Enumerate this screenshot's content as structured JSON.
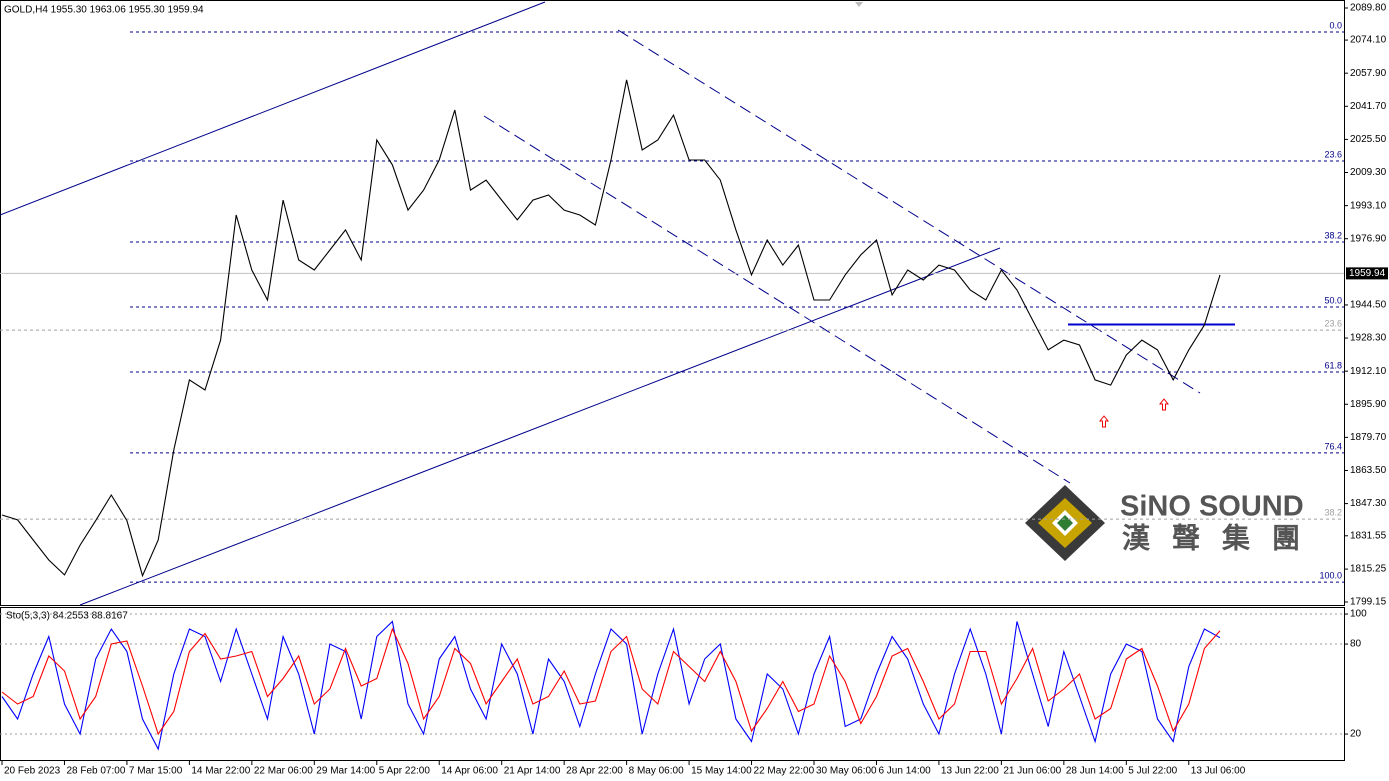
{
  "chart_data": [
    {
      "type": "line",
      "title": "GOLD,H4  1955.30 1963.06 1955.30 1959.94",
      "categories": [
        "20 Feb 2023",
        null,
        null,
        null,
        "28 Feb 07:00",
        null,
        null,
        null,
        "7 Mar 15:00",
        null,
        null,
        null,
        "14 Mar 22:00",
        null,
        null,
        null,
        "22 Mar 06:00",
        null,
        null,
        null,
        "29 Mar 14:00",
        null,
        null,
        null,
        "5 Apr 22:00",
        null,
        null,
        null,
        "14 Apr 06:00",
        null,
        null,
        null,
        "21 Apr 14:00",
        null,
        null,
        null,
        "28 Apr 22:00",
        null,
        null,
        null,
        "8 May 06:00",
        null,
        null,
        null,
        "15 May 14:00",
        null,
        null,
        null,
        "22 May 22:00",
        null,
        null,
        null,
        "30 May 06:00",
        null,
        null,
        null,
        "6 Jun 14:00",
        null,
        null,
        null,
        "13 Jun 22:00",
        null,
        null,
        null,
        "21 Jun 06:00",
        null,
        null,
        null,
        "28 Jun 14:00",
        null,
        null,
        null,
        "5 Jul 22:00",
        null,
        null,
        null,
        "13 Jul 06:00",
        null,
        null
      ],
      "series": [
        {
          "color": "#000000",
          "values": [
            1841.7,
            1839.3,
            1829.5,
            1819.7,
            1812.4,
            1827,
            1839,
            1851.5,
            1839,
            1812,
            1829.5,
            1873.5,
            1907.8,
            1902.9,
            1927.3,
            1988.5,
            1961.6,
            1946.9,
            1995.8,
            1966.5,
            1961.6,
            1971.4,
            1981.2,
            1966.5,
            2025.2,
            2013,
            1990.9,
            2000.7,
            2015.4,
            2039.9,
            2000.7,
            2005.6,
            1995.8,
            1986.1,
            1995.8,
            1998.3,
            1990.9,
            1988.5,
            1983.6,
            2015.4,
            2054.6,
            2020.3,
            2025.2,
            2037.4,
            2015.4,
            2015.4,
            2005.6,
            1981.2,
            1959.2,
            1976.3,
            1964,
            1973.8,
            1946.9,
            1946.9,
            1959.2,
            1969,
            1976.3,
            1949.4,
            1961.6,
            1956.7,
            1964,
            1961.6,
            1951.8,
            1946.9,
            1961.6,
            1951.8,
            1937.1,
            1922.5,
            1927.3,
            1924.9,
            1907.8,
            1905.3,
            1920,
            1927.3,
            1922.5,
            1907.8,
            1922.5,
            1934.7,
            1959.2
          ]
        }
      ],
      "ylim": [
        1797.68,
        2093.71
      ],
      "yticks": [
        {
          "value": 2089.8,
          "label": "2089.80"
        },
        {
          "value": 2074.1,
          "label": "2074.10"
        },
        {
          "value": 2057.9,
          "label": "2057.90"
        },
        {
          "value": 2041.7,
          "label": "2041.70"
        },
        {
          "value": 2025.5,
          "label": "2025.50"
        },
        {
          "value": 2009.3,
          "label": "2009.30"
        },
        {
          "value": 1993.1,
          "label": "1993.10"
        },
        {
          "value": 1976.9,
          "label": "1976.90"
        },
        {
          "value": 1944.5,
          "label": "1944.50"
        },
        {
          "value": 1928.3,
          "label": "1928.30"
        },
        {
          "value": 1912.1,
          "label": "1912.10"
        },
        {
          "value": 1895.9,
          "label": "1895.90"
        },
        {
          "value": 1879.7,
          "label": "1879.70"
        },
        {
          "value": 1863.5,
          "label": "1863.50"
        },
        {
          "value": 1847.3,
          "label": "1847.30"
        },
        1831.55,
        1815.25,
        {
          "value": 1799.15,
          "label": "1799.15"
        }
      ],
      "current_price": 1959.94,
      "levels": [
        {
          "label": "0.0",
          "value": 2078.05,
          "color": "#00008b"
        },
        {
          "label": "23.6",
          "value": 2014.93,
          "color": "#00008b"
        },
        {
          "label": "38.2",
          "value": 1975.3,
          "color": "#00008b"
        },
        {
          "label": "50.0",
          "value": 1943.5,
          "color": "#00008b"
        },
        {
          "label": "61.8",
          "value": 1911.7,
          "color": "#00008b"
        },
        {
          "label": "76.4",
          "value": 1872.1,
          "color": "#00008b"
        },
        {
          "label": "100.0",
          "value": 1808.9,
          "color": "#00008b"
        },
        {
          "label": "23.6",
          "value": 1932.2,
          "color": "#a0a0a0"
        },
        {
          "label": "38.2",
          "value": 1839.7,
          "color": "#a0a0a0"
        }
      ]
    },
    {
      "type": "line",
      "title": "Sto(5,3,3) 84.2553 88.8167",
      "series": [
        {
          "color": "#0000ff",
          "values": [
            45,
            30,
            60,
            85,
            40,
            20,
            70,
            90,
            75,
            30,
            10,
            60,
            90,
            85,
            55,
            90,
            60,
            30,
            85,
            60,
            20,
            80,
            75,
            30,
            85,
            95,
            40,
            20,
            70,
            85,
            50,
            30,
            80,
            60,
            20,
            70,
            55,
            25,
            60,
            90,
            80,
            20,
            60,
            90,
            40,
            70,
            80,
            30,
            15,
            60,
            50,
            20,
            60,
            85,
            25,
            30,
            60,
            85,
            70,
            40,
            20,
            60,
            90,
            60,
            20,
            95,
            60,
            25,
            75,
            45,
            15,
            60,
            80,
            75,
            30,
            15,
            65,
            90,
            84.2553
          ]
        },
        {
          "color": "#ff0000",
          "values": [
            48,
            40,
            45,
            72,
            62,
            30,
            45,
            80,
            82,
            52,
            20,
            35,
            75,
            87,
            70,
            72,
            75,
            45,
            57,
            72,
            40,
            50,
            77,
            52,
            57,
            90,
            67,
            30,
            45,
            77,
            67,
            40,
            55,
            70,
            40,
            45,
            62,
            40,
            42,
            75,
            85,
            50,
            40,
            75,
            65,
            55,
            75,
            55,
            22,
            37,
            55,
            35,
            40,
            72,
            55,
            27,
            45,
            72,
            77,
            55,
            30,
            40,
            75,
            75,
            40,
            57,
            77,
            42,
            50,
            60,
            30,
            37,
            70,
            77,
            52,
            22,
            40,
            77,
            88.8167
          ]
        }
      ],
      "ylim": [
        2.7,
        104.7
      ],
      "yticks": [
        20,
        80,
        100
      ]
    }
  ],
  "logo": {
    "name": "SiNO SOUND",
    "chinese": "漢聲集團"
  }
}
